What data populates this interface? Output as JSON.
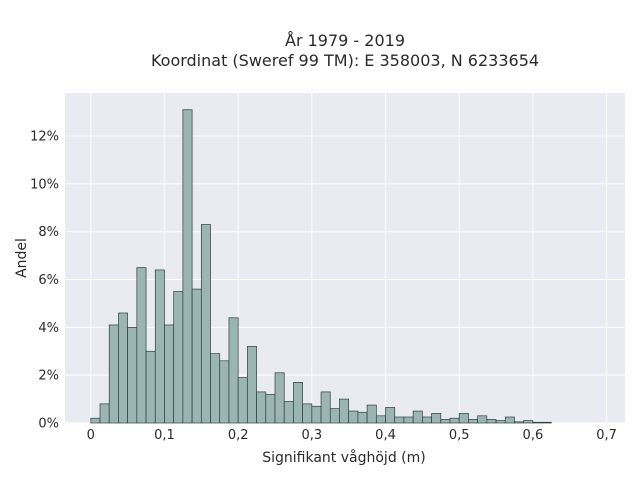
{
  "chart_data": {
    "type": "bar",
    "title_lines": [
      "År 1979 - 2019",
      "Koordinat (Sweref 99 TM): E 358003, N 6233654"
    ],
    "xlabel": "Signifikant våghöjd (m)",
    "ylabel": "Andel",
    "xlim": [
      -0.035,
      0.725
    ],
    "ylim": [
      0,
      0.138
    ],
    "x_ticks": [
      0,
      0.1,
      0.2,
      0.3,
      0.4,
      0.5,
      0.6,
      0.7
    ],
    "x_tick_labels": [
      "0",
      "0,1",
      "0,2",
      "0,3",
      "0,4",
      "0,5",
      "0,6",
      "0,7"
    ],
    "y_ticks": [
      0,
      0.02,
      0.04,
      0.06,
      0.08,
      0.1,
      0.12
    ],
    "y_tick_labels": [
      "0%",
      "2%",
      "4%",
      "6%",
      "8%",
      "10%",
      "12%"
    ],
    "grid": true,
    "bin_width": 0.0125,
    "bin_start": 0,
    "values": [
      0.002,
      0.008,
      0.041,
      0.046,
      0.04,
      0.065,
      0.03,
      0.064,
      0.041,
      0.055,
      0.131,
      0.056,
      0.083,
      0.029,
      0.026,
      0.044,
      0.019,
      0.032,
      0.013,
      0.012,
      0.021,
      0.009,
      0.017,
      0.008,
      0.007,
      0.013,
      0.006,
      0.01,
      0.005,
      0.0045,
      0.0075,
      0.003,
      0.0065,
      0.0025,
      0.0025,
      0.005,
      0.0025,
      0.004,
      0.0015,
      0.002,
      0.004,
      0.0015,
      0.003,
      0.0015,
      0.001,
      0.0025,
      0.0005,
      0.001,
      0.0003,
      0.0003
    ],
    "colors": {
      "bar_fill": "#9bb5b5",
      "bar_stroke": "#2f3f3f",
      "plot_bg": "#eaeaf2",
      "grid": "#ffffff"
    }
  }
}
